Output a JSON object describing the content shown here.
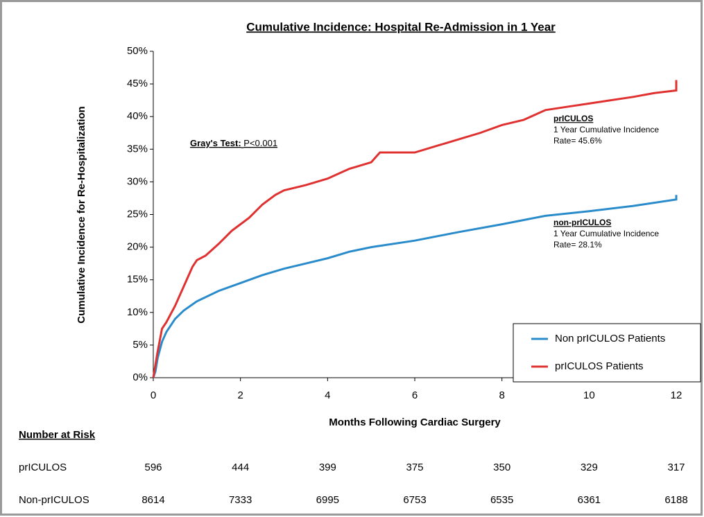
{
  "chart_data": {
    "type": "line",
    "title": "Cumulative Incidence: Hospital Re-Admission in 1 Year",
    "x_label": "Months Following Cardiac Surgery",
    "y_label": "Cumulative Incidence for Re-Hospitalization",
    "xlim": [
      0,
      12
    ],
    "xticks": [
      0,
      2,
      4,
      6,
      8,
      10,
      12
    ],
    "ylim": [
      0,
      50
    ],
    "yticks": [
      {
        "value": 0,
        "label": "0%"
      },
      {
        "value": 5,
        "label": "5%"
      },
      {
        "value": 10,
        "label": "10%"
      },
      {
        "value": 15,
        "label": "15%"
      },
      {
        "value": 20,
        "label": "20%"
      },
      {
        "value": 25,
        "label": "25%"
      },
      {
        "value": 30,
        "label": "30%"
      },
      {
        "value": 35,
        "label": "35%"
      },
      {
        "value": 40,
        "label": "40%"
      },
      {
        "value": 45,
        "label": "45%"
      },
      {
        "value": 50,
        "label": "50%"
      }
    ],
    "legend": "lower right",
    "gray_test": {
      "label": "Gray's Test:",
      "result": "P<0.001"
    },
    "series": [
      {
        "name": "Non prICULOS Patients",
        "color": "#2a8bcb",
        "x": [
          0,
          0.05,
          0.1,
          0.2,
          0.3,
          0.5,
          0.7,
          1.0,
          1.5,
          2,
          2.5,
          3,
          3.5,
          4,
          4.5,
          5,
          6,
          7,
          8,
          9,
          10,
          11,
          12,
          12
        ],
        "values": [
          0,
          1,
          3,
          5.5,
          7,
          9,
          10.3,
          11.7,
          13.3,
          14.5,
          15.7,
          16.7,
          17.5,
          18.3,
          19.3,
          20,
          21,
          22.3,
          23.5,
          24.8,
          25.5,
          26.3,
          27.3,
          28
        ],
        "annotation": [
          "non-prICULOS",
          "1 Year Cumulative Incidence",
          "Rate= 28.1%"
        ]
      },
      {
        "name": "prICULOS Patients",
        "color": "#e03131",
        "x": [
          0,
          0.05,
          0.1,
          0.2,
          0.3,
          0.5,
          0.7,
          0.9,
          1.0,
          1.2,
          1.5,
          1.8,
          2.0,
          2.2,
          2.5,
          2.8,
          3.0,
          3.5,
          4.0,
          4.5,
          5.0,
          5.2,
          6.0,
          6.5,
          7.0,
          7.5,
          8.0,
          8.5,
          9.0,
          9.5,
          10,
          10.5,
          11,
          11.5,
          12,
          12
        ],
        "values": [
          0,
          2,
          4,
          7.5,
          8.5,
          11,
          14,
          17,
          18,
          18.7,
          20.5,
          22.5,
          23.5,
          24.5,
          26.5,
          28,
          28.7,
          29.5,
          30.5,
          32,
          33,
          34.5,
          34.5,
          35.5,
          36.5,
          37.5,
          38.7,
          39.5,
          41,
          41.5,
          42,
          42.5,
          43,
          43.6,
          44,
          45.6
        ],
        "annotation": [
          "prICULOS",
          "1 Year Cumulative Incidence",
          "Rate= 45.6%"
        ]
      }
    ],
    "risk_table": {
      "title": "Number at Risk",
      "rows": [
        {
          "label": "prICULOS",
          "values": [
            596,
            444,
            399,
            375,
            350,
            329,
            317
          ]
        },
        {
          "label": "Non-prICULOS",
          "values": [
            8614,
            7333,
            6995,
            6753,
            6535,
            6361,
            6188
          ]
        }
      ]
    }
  }
}
